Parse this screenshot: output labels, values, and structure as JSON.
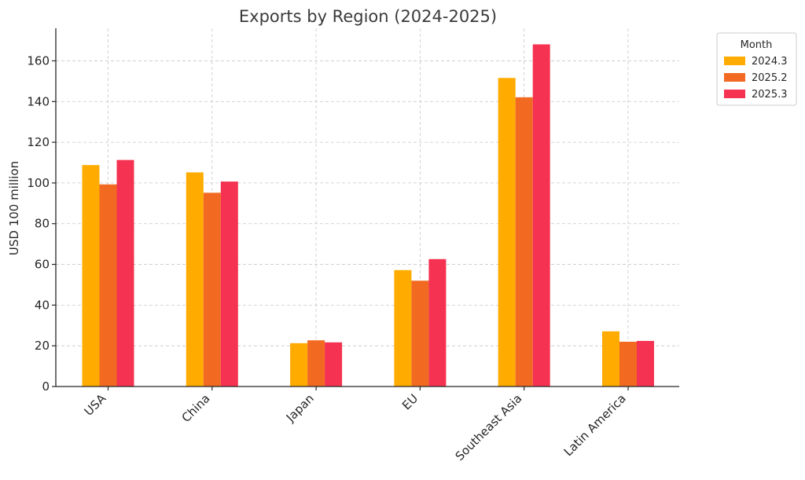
{
  "chart_data": {
    "type": "bar",
    "title": "Exports by Region (2024-2025)",
    "xlabel": "",
    "ylabel": "USD 100 million",
    "ylim": [
      0,
      176
    ],
    "yticks": [
      0,
      20,
      40,
      60,
      80,
      100,
      120,
      140,
      160
    ],
    "grid": true,
    "legend_title": "Month",
    "legend_position": "upper right, outside plot",
    "categories": [
      "USA",
      "China",
      "Japan",
      "EU",
      "Southeast Asia",
      "Latin America"
    ],
    "series": [
      {
        "name": "2024.3",
        "color": "#ffab00",
        "values": [
          108.8,
          105.2,
          21.3,
          57.2,
          151.6,
          27.1
        ]
      },
      {
        "name": "2025.2",
        "color": "#f26a21",
        "values": [
          99.3,
          95.2,
          22.7,
          52.0,
          142.1,
          22.0
        ]
      },
      {
        "name": "2025.3",
        "color": "#f53251",
        "values": [
          111.3,
          100.7,
          21.7,
          62.6,
          168.1,
          22.4
        ]
      }
    ]
  }
}
